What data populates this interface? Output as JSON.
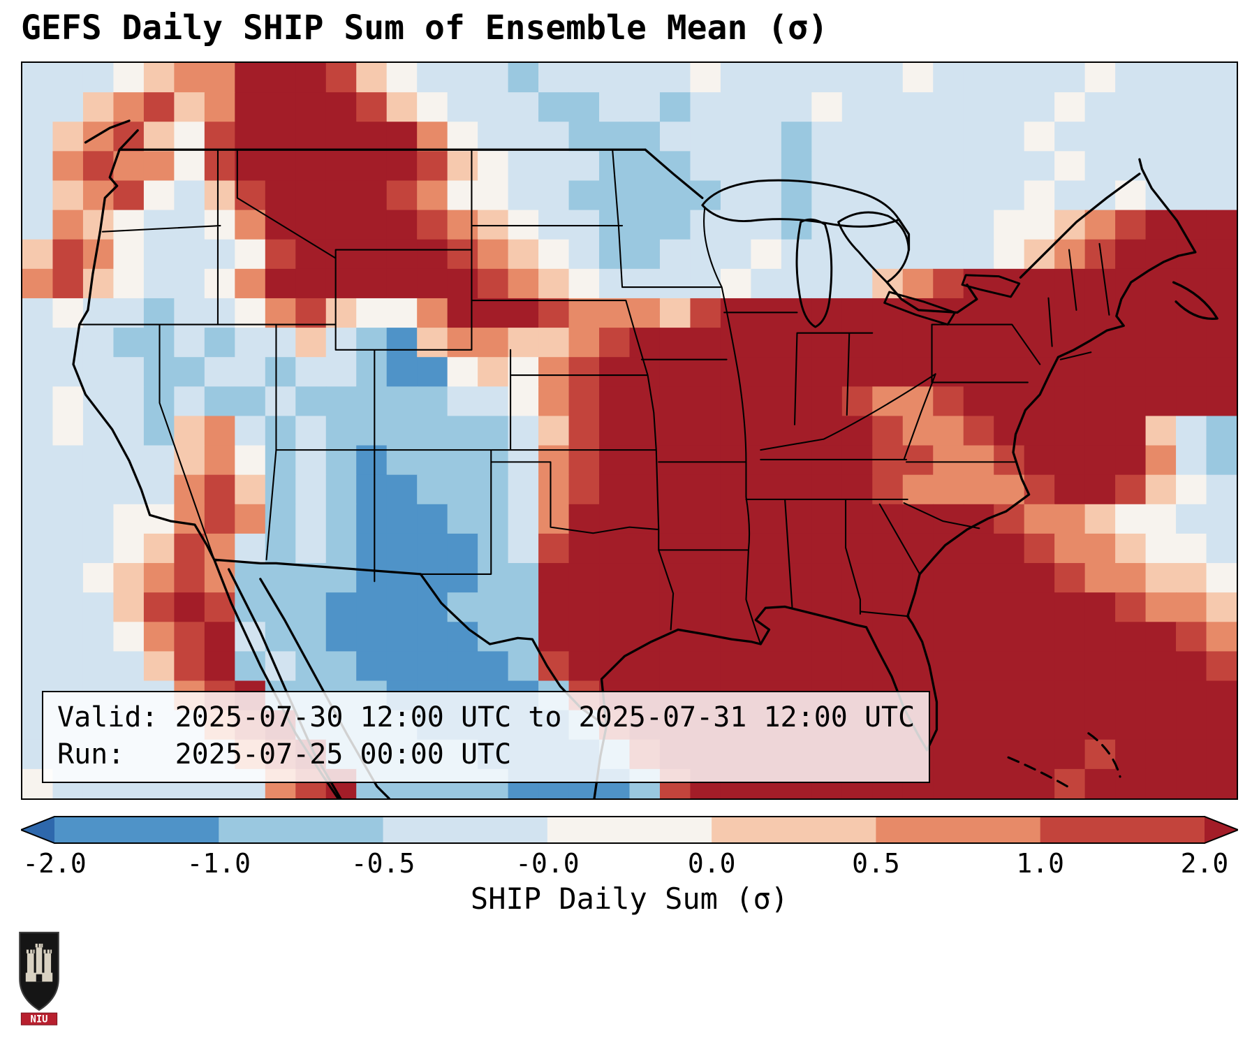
{
  "title": "GEFS Daily SHIP Sum of Ensemble Mean (σ)",
  "info_box": {
    "valid_line": "Valid: 2025-07-30 12:00 UTC to 2025-07-31 12:00 UTC",
    "run_line": "Run:   2025-07-25 00:00 UTC"
  },
  "logo": {
    "text": "NIU"
  },
  "colors": {
    "map_border": "#000000",
    "info_box_bg": "rgba(255,255,255,0.82)",
    "logo_banner_red": "#b81f2e"
  },
  "chart_data": {
    "type": "heatmap",
    "title": "GEFS Daily SHIP Sum of Ensemble Mean (σ)",
    "colorbar_label": "SHIP Daily Sum (σ)",
    "valid": "2025-07-30 12:00 UTC to 2025-07-31 12:00 UTC",
    "run": "2025-07-25 00:00 UTC",
    "region": "CONUS with southern Canada, northern Mexico, Gulf of Mexico and western Atlantic",
    "colorbar": {
      "tick_labels": [
        "-2.0",
        "-1.0",
        "-0.5",
        "-0.0",
        "0.0",
        "0.5",
        "1.0",
        "2.0"
      ],
      "boundaries": [
        -2.0,
        -1.0,
        -0.5,
        -0.0,
        0.0,
        0.5,
        1.0,
        2.0
      ],
      "extend": "both",
      "bin_colors": [
        "#2e68ac",
        "#4f93c8",
        "#9ac8e0",
        "#d2e3f0",
        "#f7f3ee",
        "#f6c9ae",
        "#e78a68",
        "#c3443c",
        "#a31d28"
      ],
      "bin_labels": [
        "< -2.0",
        "-2.0 to -1.0",
        "-1.0 to -0.5",
        "-0.5 to -0.0",
        "-0.0 to 0.0",
        "0.0 to 0.5",
        "0.5 to 1.0",
        "1.0 to 2.0",
        "> 2.0"
      ]
    },
    "grid": {
      "note": "Approximate SHIP daily-sum sigma bin per cell, read off the map. Row-major, north to south, west to east. Each character 0-8 indexes colorbar.bin_colors (0 = strongly negative / deep blue, 4 = near zero / white, 8 = strongly positive / dark red).",
      "ncols": 40,
      "nrows": 25,
      "rows": [
        "3334566888754333233333433333343333343333",
        "3356756888875433322332333343333333433333",
        "3567547888888643332223333233333334333333",
        "3676647888888754333222333233333333433333",
        "3567435788887644332222233233333334334333",
        "3654334688888765433222333233333344567888",
        "5764333478888876543223334333333345678888",
        "6754334688888887654333343333567888888888",
        "3433233467544688876665788888888888888888",
        "3332232335321566556788888888888888888888",
        "3333223323321145467888888888888888888888",
        "3433232232222233467888888887667888888888",
        "3433256323222222357888888888766788888532",
        "3333356423212222367888888888776678888632",
        "3333367523211222367888888888766667887543",
        "3334467623211122368888888888888876654433",
        "3334576323211112378888888888888887665443",
        "3345676222211112288888888888888888766554",
        "3335787222111122288888888888888888887665",
        "3334678322111112288888888888888888888876",
        "3333578232211111278888888888888888888887",
        "3333367822221111127888888888888888888888",
        "3333336782222111112788888888888888888888",
        "3333333678222221111278888888888888878888",
        "4333333367822222111127888888888888788888"
      ],
      "highlights": "Strong positive (>2σ): Gulf of Mexico, Southeast US, Ohio Valley, Mid-Atlantic and offshore Atlantic, Montana/Wyoming/Nebraska band, Pacific Northwest interior. Negative (blue): upper Midwest/southern Canada, central/west Texas, southeastern Colorado, interior Mexico band."
    }
  }
}
